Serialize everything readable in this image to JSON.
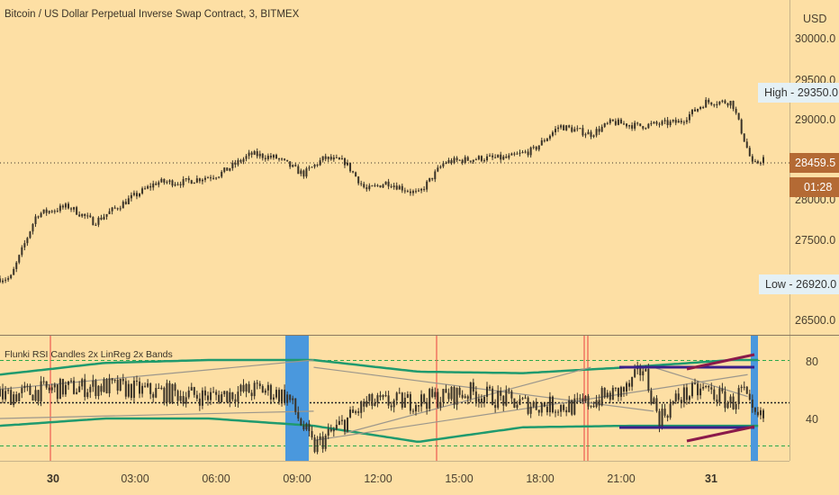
{
  "header": {
    "title": "Bitcoin / US Dollar Perpetual Inverse Swap Contract, 3, BITMEX",
    "currency": "USD"
  },
  "price_pane": {
    "y_ticks": [
      "30000.0",
      "29500.0",
      "29000.0",
      "28000.0",
      "27500.0",
      "26500.0"
    ],
    "high_label": "High - 29350.0",
    "low_label": "Low - 26920.0",
    "last_price_label": "28459.5",
    "countdown_label": "01:28"
  },
  "indicator_pane": {
    "name": "Flunki RSI Candles 2x LinReg 2x Bands",
    "y_ticks": [
      "80",
      "40"
    ]
  },
  "time_axis": {
    "labels": [
      "30",
      "03:00",
      "06:00",
      "09:00",
      "12:00",
      "15:00",
      "18:00",
      "21:00",
      "31"
    ]
  },
  "colors": {
    "background": "#fddfa4",
    "candle": "#3a3328",
    "axis_text": "#4a4030",
    "high_low_bg": "#e4f0f5",
    "last_price_bg": "#b46a34",
    "band_green": "#1f9a6e",
    "linreg_gray": "#9c978c",
    "highlight_blue": "#4a98dd",
    "red_marker": "#ef5a50",
    "channel_purple": "#3a1f8a",
    "channel_maroon": "#8b1a4a"
  },
  "chart_data": [
    {
      "type": "candlestick",
      "title": "Bitcoin / US Dollar Perpetual Inverse Swap Contract, 3, BITMEX",
      "ylabel": "USD",
      "ylim": [
        26300,
        30300
      ],
      "x": [
        "30",
        "03:00",
        "06:00",
        "09:00",
        "12:00",
        "15:00",
        "18:00",
        "21:00",
        "31"
      ],
      "close_path": [
        [
          0,
          27000
        ],
        [
          0.2,
          27000
        ],
        [
          0.7,
          27800
        ],
        [
          1.3,
          27900
        ],
        [
          1.8,
          27700
        ],
        [
          2.5,
          28000
        ],
        [
          3,
          28200
        ],
        [
          3.5,
          28200
        ],
        [
          4.2,
          28300
        ],
        [
          4.8,
          28550
        ],
        [
          5.3,
          28500
        ],
        [
          5.8,
          28300
        ],
        [
          6.2,
          28500
        ],
        [
          6.6,
          28450
        ],
        [
          7,
          28100
        ],
        [
          7.4,
          28200
        ],
        [
          8,
          28050
        ],
        [
          8.5,
          28450
        ],
        [
          9.2,
          28500
        ],
        [
          9.7,
          28500
        ],
        [
          10.2,
          28600
        ],
        [
          10.7,
          28900
        ],
        [
          11.3,
          28800
        ],
        [
          11.7,
          28950
        ],
        [
          12.2,
          28900
        ],
        [
          13,
          28950
        ],
        [
          13.5,
          29200
        ],
        [
          14,
          29200
        ],
        [
          14.4,
          28400
        ],
        [
          14.6,
          28500
        ]
      ],
      "high": 29350.0,
      "low": 26920.0,
      "last": 28459.5
    },
    {
      "type": "line",
      "title": "Flunki RSI Candles 2x LinReg 2x Bands",
      "ylim": [
        10,
        90
      ],
      "reference_levels": [
        80,
        50,
        20
      ],
      "rsi_path": [
        [
          0,
          55
        ],
        [
          1,
          60
        ],
        [
          2,
          62
        ],
        [
          3,
          58
        ],
        [
          4,
          55
        ],
        [
          5,
          60
        ],
        [
          5.5,
          55
        ],
        [
          6,
          20
        ],
        [
          7,
          50
        ],
        [
          8,
          52
        ],
        [
          9,
          58
        ],
        [
          10,
          50
        ],
        [
          11,
          48
        ],
        [
          12,
          60
        ],
        [
          12.3,
          75
        ],
        [
          12.6,
          40
        ],
        [
          13,
          55
        ],
        [
          13.5,
          60
        ],
        [
          14,
          50
        ],
        [
          14.2,
          60
        ],
        [
          14.4,
          40
        ]
      ],
      "upper_band_path": [
        [
          0,
          70
        ],
        [
          2,
          78
        ],
        [
          4,
          80
        ],
        [
          6,
          80
        ],
        [
          8,
          72
        ],
        [
          10,
          71
        ],
        [
          12,
          75
        ],
        [
          14,
          80
        ],
        [
          14.5,
          80
        ]
      ],
      "lower_band_path": [
        [
          0,
          35
        ],
        [
          2,
          40
        ],
        [
          4,
          40
        ],
        [
          6,
          35
        ],
        [
          8,
          24
        ],
        [
          10,
          34
        ],
        [
          12,
          35
        ],
        [
          14,
          35
        ],
        [
          14.5,
          35
        ]
      ]
    }
  ]
}
